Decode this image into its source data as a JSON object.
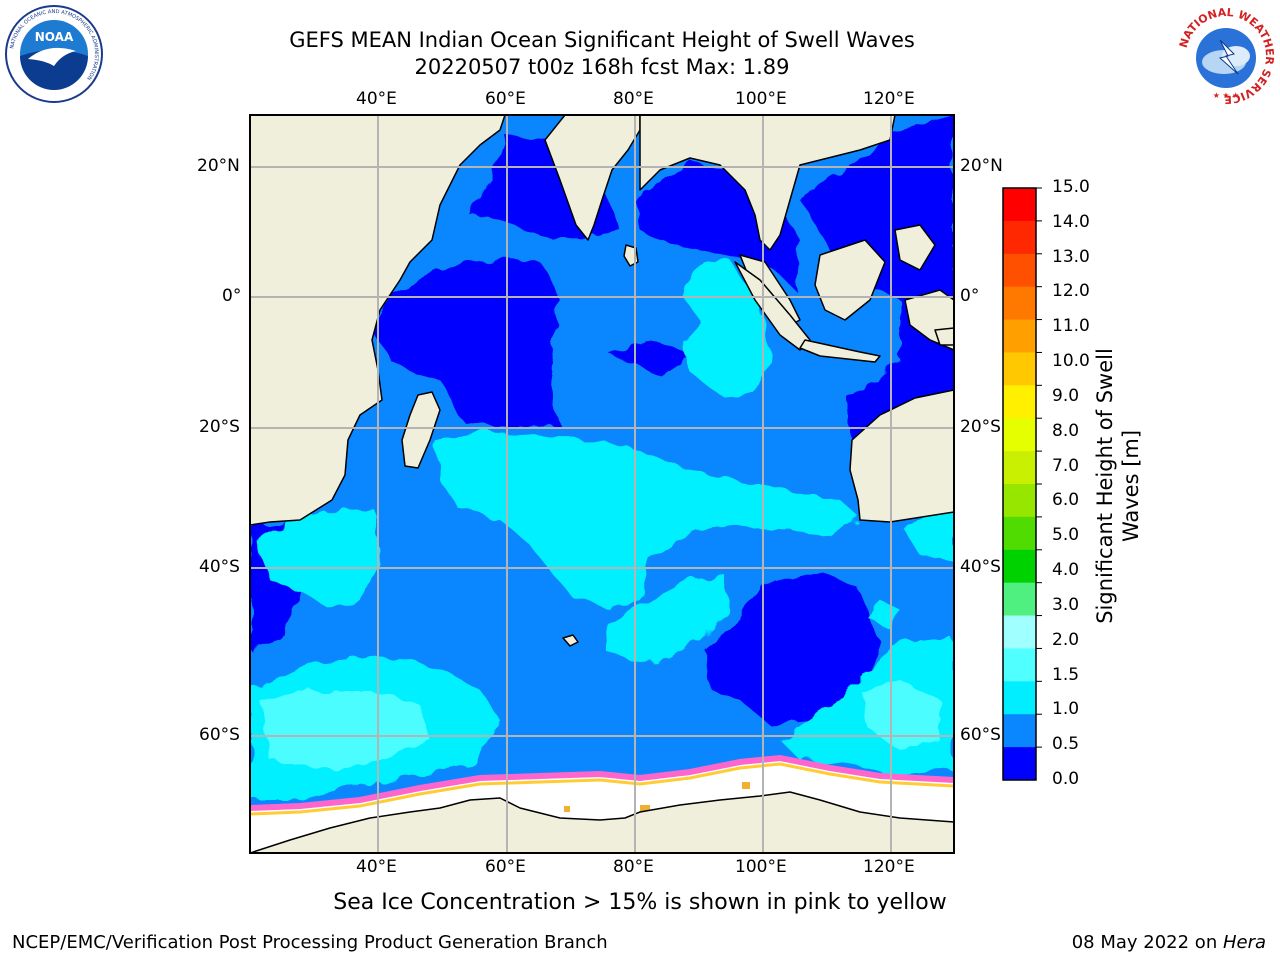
{
  "header": {
    "title_line1": "GEFS MEAN Indian Ocean Significant Height of Swell Waves",
    "title_line2": "20220507 t00z 168h fcst   Max: 1.89"
  },
  "axes": {
    "lon_labels": [
      "40°E",
      "60°E",
      "80°E",
      "100°E",
      "120°E"
    ],
    "lat_labels": [
      "20°N",
      "0°",
      "20°S",
      "40°S",
      "60°S"
    ]
  },
  "colorbar": {
    "title_line1": "Significant Height of Swell",
    "title_line2": "Waves [m]",
    "ticks": [
      "15.0",
      "14.0",
      "13.0",
      "12.0",
      "11.0",
      "10.0",
      "9.0",
      "8.0",
      "7.0",
      "6.0",
      "5.0",
      "4.0",
      "3.0",
      "2.0",
      "1.5",
      "1.0",
      "0.5",
      "0.0"
    ],
    "colors_top_to_bottom": [
      "#ff0000",
      "#ff2800",
      "#ff5000",
      "#ff7800",
      "#ffa000",
      "#ffc800",
      "#fff000",
      "#e6ff00",
      "#c8f000",
      "#96e600",
      "#50dc00",
      "#00d200",
      "#50f080",
      "#a0ffff",
      "#50ffff",
      "#00eeff",
      "#0a87ff",
      "#0000ff"
    ]
  },
  "map_colors": {
    "land": "#efefdb",
    "deep_blue": "#0000ff",
    "mid_blue": "#0a87ff",
    "cyan": "#00f0ff",
    "light_cyan": "#55ffff",
    "sea_ice": "#ffffff",
    "ice_edge_pink": "#ff66cc",
    "ice_edge_yellow": "#ffcc33",
    "grid": "#b4b4b4"
  },
  "footnote": "Sea Ice Concentration > 15% is shown in pink to yellow",
  "footer": {
    "left": "NCEP/EMC/Verification Post Processing Product Generation Branch",
    "right_date": "08 May 2022 on ",
    "right_host": "Hera"
  },
  "logos": {
    "left": "NOAA",
    "left_ring_text": "NATIONAL OCEANIC AND ATMOSPHERIC ADMINISTRATION",
    "left_ring_bottom": "U.S. DEPARTMENT OF COMMERCE",
    "right_ring_text": "NATIONAL WEATHER SERVICE"
  }
}
